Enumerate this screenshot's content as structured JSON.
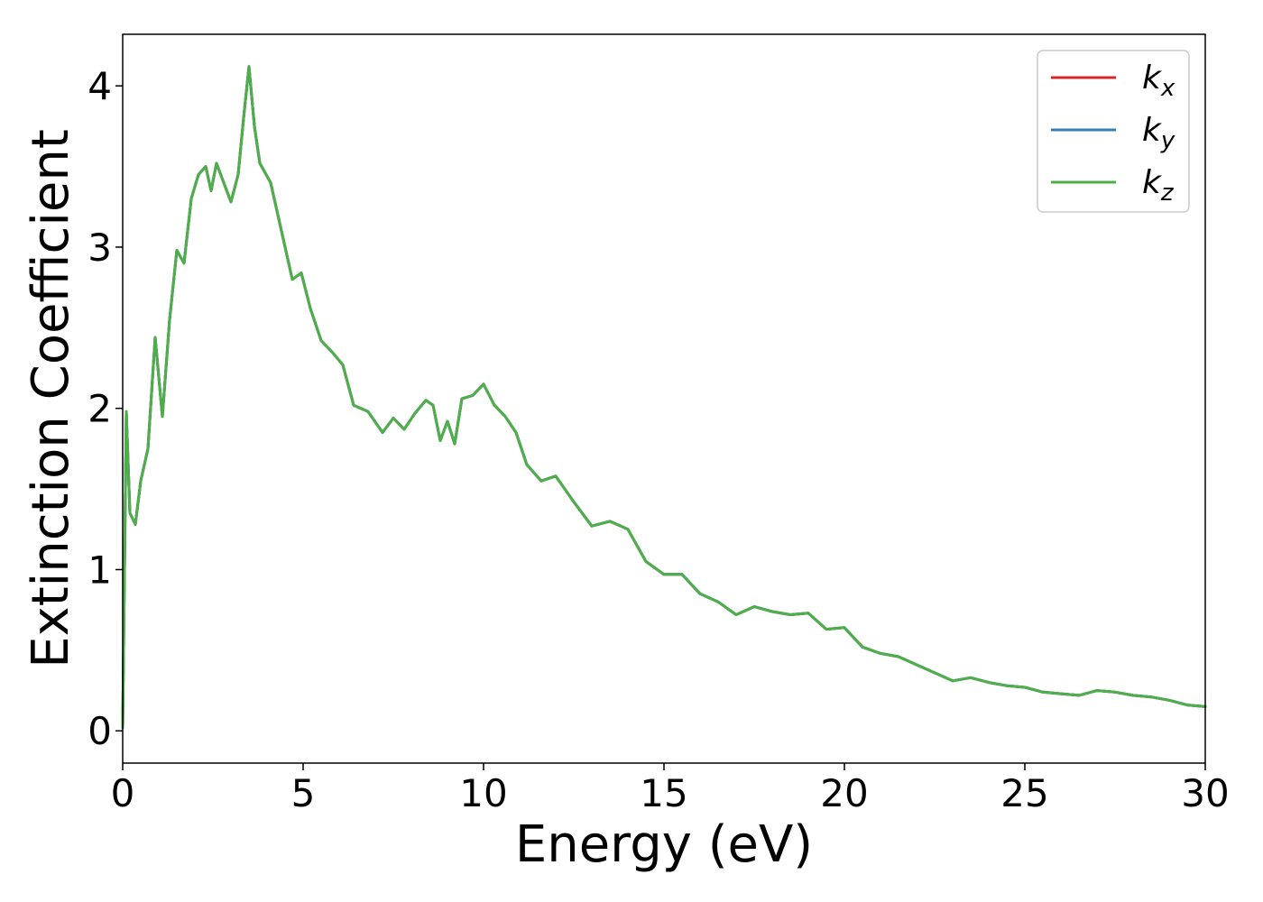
{
  "chart_data": {
    "type": "line",
    "title": "",
    "xlabel": "Energy (eV)",
    "ylabel": "Extinction Coefficient",
    "xlim": [
      0,
      30
    ],
    "ylim": [
      -0.2,
      4.32
    ],
    "xticks": [
      0,
      5,
      10,
      15,
      20,
      25,
      30
    ],
    "yticks": [
      0,
      1,
      2,
      3,
      4
    ],
    "x_tick_labels": [
      "0",
      "5",
      "10",
      "15",
      "20",
      "25",
      "30"
    ],
    "y_tick_labels": [
      "0",
      "1",
      "2",
      "3",
      "4"
    ],
    "grid": false,
    "legend": "top-right",
    "x": [
      0,
      0.1,
      0.2,
      0.35,
      0.5,
      0.7,
      0.9,
      1.1,
      1.3,
      1.5,
      1.7,
      1.9,
      2.1,
      2.3,
      2.45,
      2.6,
      2.8,
      3.0,
      3.2,
      3.35,
      3.5,
      3.65,
      3.8,
      4.1,
      4.4,
      4.7,
      4.95,
      5.2,
      5.5,
      5.8,
      6.1,
      6.4,
      6.8,
      7.2,
      7.5,
      7.8,
      8.1,
      8.4,
      8.6,
      8.8,
      9.0,
      9.2,
      9.4,
      9.7,
      10.0,
      10.3,
      10.6,
      10.9,
      11.2,
      11.6,
      12.0,
      12.5,
      13.0,
      13.5,
      14.0,
      14.5,
      15.0,
      15.5,
      16.0,
      16.5,
      17.0,
      17.5,
      18.0,
      18.5,
      19.0,
      19.5,
      20.0,
      20.5,
      21.0,
      21.5,
      22.0,
      22.5,
      23.0,
      23.5,
      24.0,
      24.5,
      25.0,
      25.5,
      26.0,
      26.5,
      27.0,
      27.5,
      28.0,
      28.5,
      29.0,
      29.5,
      30.0
    ],
    "series": [
      {
        "name": "k_x",
        "legend_label": "k",
        "legend_sub": "x",
        "color": "#d62728",
        "values": [
          0.02,
          1.98,
          1.35,
          1.28,
          1.55,
          1.75,
          2.44,
          1.95,
          2.55,
          2.98,
          2.9,
          3.3,
          3.45,
          3.5,
          3.35,
          3.52,
          3.4,
          3.28,
          3.45,
          3.8,
          4.12,
          3.75,
          3.52,
          3.4,
          3.1,
          2.8,
          2.84,
          2.62,
          2.42,
          2.35,
          2.27,
          2.02,
          1.98,
          1.85,
          1.94,
          1.87,
          1.97,
          2.05,
          2.02,
          1.8,
          1.92,
          1.78,
          2.06,
          2.08,
          2.15,
          2.02,
          1.95,
          1.85,
          1.65,
          1.55,
          1.58,
          1.42,
          1.27,
          1.3,
          1.25,
          1.05,
          0.97,
          0.97,
          0.85,
          0.8,
          0.72,
          0.77,
          0.74,
          0.72,
          0.73,
          0.63,
          0.64,
          0.52,
          0.48,
          0.46,
          0.41,
          0.36,
          0.31,
          0.33,
          0.3,
          0.28,
          0.27,
          0.24,
          0.23,
          0.22,
          0.25,
          0.24,
          0.22,
          0.21,
          0.19,
          0.16,
          0.15
        ]
      },
      {
        "name": "k_y",
        "legend_label": "k",
        "legend_sub": "y",
        "color": "#377eb8",
        "values": [
          0.02,
          1.98,
          1.35,
          1.28,
          1.55,
          1.75,
          2.44,
          1.95,
          2.55,
          2.98,
          2.9,
          3.3,
          3.45,
          3.5,
          3.35,
          3.52,
          3.4,
          3.28,
          3.45,
          3.8,
          4.12,
          3.75,
          3.52,
          3.4,
          3.1,
          2.8,
          2.84,
          2.62,
          2.42,
          2.35,
          2.27,
          2.02,
          1.98,
          1.85,
          1.94,
          1.87,
          1.97,
          2.05,
          2.02,
          1.8,
          1.92,
          1.78,
          2.06,
          2.08,
          2.15,
          2.02,
          1.95,
          1.85,
          1.65,
          1.55,
          1.58,
          1.42,
          1.27,
          1.3,
          1.25,
          1.05,
          0.97,
          0.97,
          0.85,
          0.8,
          0.72,
          0.77,
          0.74,
          0.72,
          0.73,
          0.63,
          0.64,
          0.52,
          0.48,
          0.46,
          0.41,
          0.36,
          0.31,
          0.33,
          0.3,
          0.28,
          0.27,
          0.24,
          0.23,
          0.22,
          0.25,
          0.24,
          0.22,
          0.21,
          0.19,
          0.16,
          0.15
        ]
      },
      {
        "name": "k_z",
        "legend_label": "k",
        "legend_sub": "z",
        "color": "#4daf4a",
        "values": [
          0.02,
          1.98,
          1.35,
          1.28,
          1.55,
          1.75,
          2.44,
          1.95,
          2.55,
          2.98,
          2.9,
          3.3,
          3.45,
          3.5,
          3.35,
          3.52,
          3.4,
          3.28,
          3.45,
          3.8,
          4.12,
          3.75,
          3.52,
          3.4,
          3.1,
          2.8,
          2.84,
          2.62,
          2.42,
          2.35,
          2.27,
          2.02,
          1.98,
          1.85,
          1.94,
          1.87,
          1.97,
          2.05,
          2.02,
          1.8,
          1.92,
          1.78,
          2.06,
          2.08,
          2.15,
          2.02,
          1.95,
          1.85,
          1.65,
          1.55,
          1.58,
          1.42,
          1.27,
          1.3,
          1.25,
          1.05,
          0.97,
          0.97,
          0.85,
          0.8,
          0.72,
          0.77,
          0.74,
          0.72,
          0.73,
          0.63,
          0.64,
          0.52,
          0.48,
          0.46,
          0.41,
          0.36,
          0.31,
          0.33,
          0.3,
          0.28,
          0.27,
          0.24,
          0.23,
          0.22,
          0.25,
          0.24,
          0.22,
          0.21,
          0.19,
          0.16,
          0.15
        ]
      }
    ]
  }
}
